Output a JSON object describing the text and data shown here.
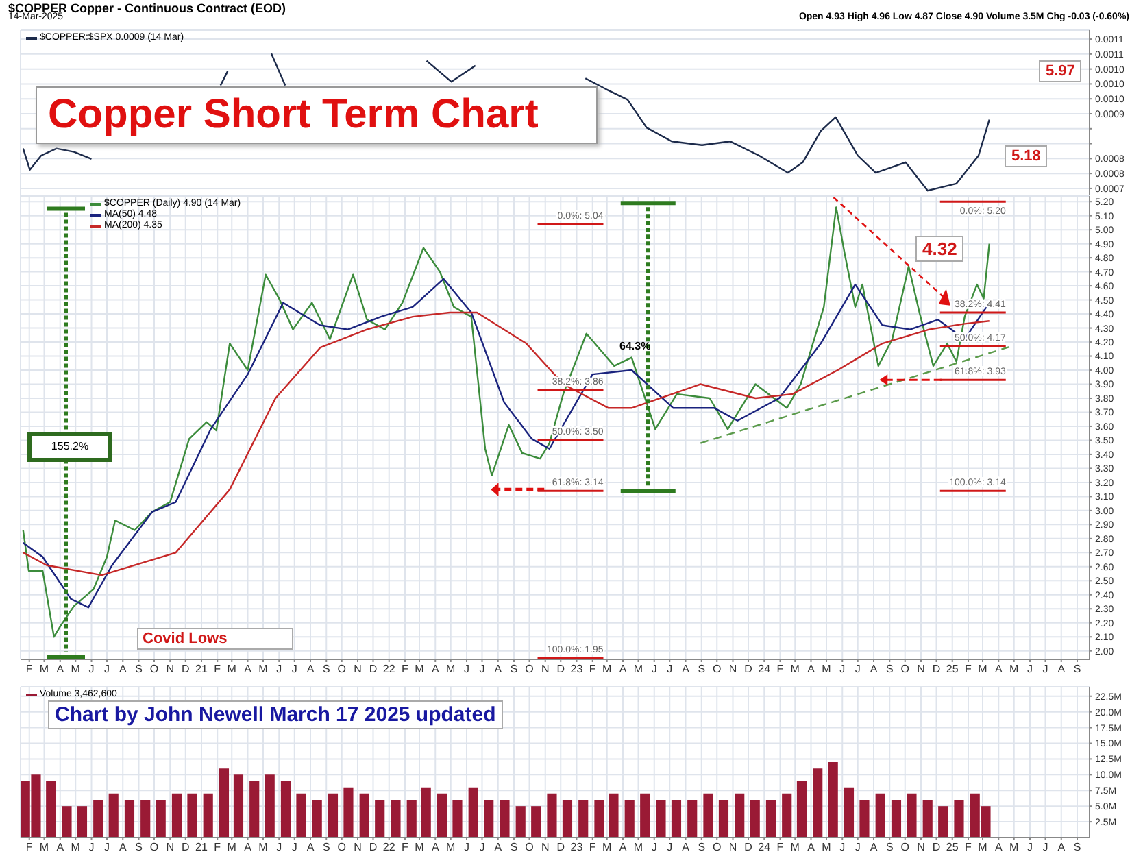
{
  "chart_data": [
    {
      "type": "line",
      "title": "Copper Short Term Chart",
      "annotations": [
        "$COPPER Copper - Continuous Contract (EOD)",
        "14-Mar-2025",
        "Open 4.93 High 4.96 Low 4.87 Close 4.90 Volume 3.5M Chg -0.03 (-0.60%)",
        "5.97",
        "5.18"
      ],
      "xlim": [
        "2020-01-15",
        "2025-09-25"
      ],
      "xticks": [
        {
          "value": "2020-02",
          "label": null
        },
        {
          "value": "2020-03",
          "label": null
        },
        {
          "value": "2020-04",
          "label": null
        },
        {
          "value": "2020-05",
          "label": null
        },
        {
          "value": "2020-06",
          "label": null
        },
        {
          "value": "2020-07",
          "label": null
        },
        {
          "value": "2020-08",
          "label": null
        },
        {
          "value": "2020-09",
          "label": null
        },
        {
          "value": "2020-10",
          "label": null
        },
        {
          "value": "2020-11",
          "label": null
        },
        {
          "value": "2020-12",
          "label": null
        },
        {
          "value": "2021-01",
          "label": null
        },
        {
          "value": "2021-02",
          "label": null
        },
        {
          "value": "2021-03",
          "label": null
        },
        {
          "value": "2021-04",
          "label": null
        },
        {
          "value": "2021-05",
          "label": null
        },
        {
          "value": "2021-06",
          "label": null
        },
        {
          "value": "2021-07",
          "label": null
        },
        {
          "value": "2021-08",
          "label": null
        },
        {
          "value": "2021-09",
          "label": null
        },
        {
          "value": "2021-10",
          "label": null
        },
        {
          "value": "2021-11",
          "label": null
        },
        {
          "value": "2021-12",
          "label": null
        },
        {
          "value": "2022-01",
          "label": null
        },
        {
          "value": "2022-02",
          "label": null
        },
        {
          "value": "2022-03",
          "label": null
        },
        {
          "value": "2022-04",
          "label": null
        },
        {
          "value": "2022-05",
          "label": null
        },
        {
          "value": "2022-06",
          "label": null
        },
        {
          "value": "2022-07",
          "label": null
        },
        {
          "value": "2022-08",
          "label": null
        },
        {
          "value": "2022-09",
          "label": null
        },
        {
          "value": "2022-10",
          "label": null
        },
        {
          "value": "2022-11",
          "label": null
        },
        {
          "value": "2022-12",
          "label": null
        },
        {
          "value": "2023-01",
          "label": null
        },
        {
          "value": "2023-02",
          "label": null
        },
        {
          "value": "2023-03",
          "label": null
        },
        {
          "value": "2023-04",
          "label": null
        },
        {
          "value": "2023-05",
          "label": null
        },
        {
          "value": "2023-06",
          "label": null
        },
        {
          "value": "2023-07",
          "label": null
        },
        {
          "value": "2023-08",
          "label": null
        },
        {
          "value": "2023-09",
          "label": null
        },
        {
          "value": "2023-10",
          "label": null
        },
        {
          "value": "2023-11",
          "label": null
        },
        {
          "value": "2023-12",
          "label": null
        },
        {
          "value": "2024-01",
          "label": null
        },
        {
          "value": "2024-02",
          "label": null
        },
        {
          "value": "2024-03",
          "label": null
        },
        {
          "value": "2024-04",
          "label": null
        },
        {
          "value": "2024-05",
          "label": null
        },
        {
          "value": "2024-06",
          "label": null
        },
        {
          "value": "2024-07",
          "label": null
        },
        {
          "value": "2024-08",
          "label": null
        },
        {
          "value": "2024-09",
          "label": null
        },
        {
          "value": "2024-10",
          "label": null
        },
        {
          "value": "2024-11",
          "label": null
        },
        {
          "value": "2024-12",
          "label": null
        },
        {
          "value": "2025-01",
          "label": null
        },
        {
          "value": "2025-02",
          "label": null
        },
        {
          "value": "2025-03",
          "label": null
        },
        {
          "value": "2025-04",
          "label": null
        },
        {
          "value": "2025-05",
          "label": null
        },
        {
          "value": "2025-06",
          "label": null
        },
        {
          "value": "2025-07",
          "label": null
        },
        {
          "value": "2025-08",
          "label": null
        },
        {
          "value": "2025-09",
          "label": null
        }
      ],
      "ylim": [
        0.000691,
        0.001139
      ],
      "yticks": [
        {
          "value": 0.000715,
          "label": "0.0007"
        },
        {
          "value": 0.000755,
          "label": "0.0008"
        },
        {
          "value": 0.000795,
          "label": "0.0008"
        },
        {
          "value": 0.000835,
          "label": null
        },
        {
          "value": 0.000875,
          "label": null
        },
        {
          "value": 0.000915,
          "label": "0.0009"
        },
        {
          "value": 0.000955,
          "label": "0.0010"
        },
        {
          "value": 0.000995,
          "label": "0.0010"
        },
        {
          "value": 0.001035,
          "label": "0.0010"
        },
        {
          "value": 0.001075,
          "label": "0.0011"
        },
        {
          "value": 0.001115,
          "label": "0.0011"
        }
      ],
      "tick_labels": "y",
      "grid": true,
      "legend": "top left",
      "series": [
        {
          "name": "$COPPER:$SPX 0.0009 (14 Mar)",
          "color": "#1c2a4a",
          "x": [
            "2020-01-20",
            "2020-02-02",
            "2020-02-24",
            "2020-03-25",
            "2020-04-28",
            "2020-06-01",
            "2020-09-15",
            "2021-02-07",
            "2021-02-21",
            "2021-04-18",
            "2021-05-17",
            "2021-06-13",
            "2021-07-26",
            "2021-10-19",
            "2022-01-27",
            "2022-03-15",
            "2022-05-02",
            "2022-06-18",
            "2022-06-23",
            "2022-09-15",
            "2023-01-18",
            "2023-02-27",
            "2023-04-10",
            "2023-05-17",
            "2023-07-05",
            "2023-09-02",
            "2023-10-27",
            "2023-12-22",
            "2024-02-16",
            "2024-03-16",
            "2024-04-20",
            "2024-05-19",
            "2024-07-01",
            "2024-08-05",
            "2024-10-02",
            "2024-11-14",
            "2025-01-09",
            "2025-02-21",
            "2025-03-14"
          ],
          "values": [
            0.000822,
            0.000765,
            0.000803,
            0.000822,
            0.000813,
            0.000794,
            null,
            0.000991,
            0.001029,
            null,
            0.001076,
            0.000991,
            null,
            null,
            null,
            0.001057,
            0.001001,
            0.001044,
            null,
            null,
            0.00101,
            0.000981,
            0.000953,
            0.000878,
            0.000841,
            0.000831,
            0.000841,
            0.000803,
            0.000757,
            0.000785,
            0.000869,
            0.000906,
            0.000803,
            0.000757,
            0.000785,
            0.000709,
            0.000728,
            0.000803,
            0.000899
          ]
        }
      ]
    },
    {
      "type": "line",
      "annotations": [
        "155.2%",
        "64.3%",
        "4.32",
        "Covid Lows"
      ],
      "ref_lines": [
        {
          "axis": "y",
          "value": 5.04,
          "label": "0.0%: 5.04",
          "color": "#d01818"
        },
        {
          "axis": "y",
          "value": 3.86,
          "label": "38.2%: 3.86",
          "color": "#d01818"
        },
        {
          "axis": "y",
          "value": 3.5,
          "label": "50.0%: 3.50",
          "color": "#d01818"
        },
        {
          "axis": "y",
          "value": 3.14,
          "label": "61.8%: 3.14",
          "color": "#d01818"
        },
        {
          "axis": "y",
          "value": 1.95,
          "label": "100.0%: 1.95",
          "color": "#d01818"
        },
        {
          "axis": "y",
          "value": 5.2,
          "label": "0.0%: 5.20",
          "color": "#d01818"
        },
        {
          "axis": "y",
          "value": 4.41,
          "label": "38.2%: 4.41",
          "color": "#d01818"
        },
        {
          "axis": "y",
          "value": 4.17,
          "label": "50.0%: 4.17",
          "color": "#d01818"
        },
        {
          "axis": "y",
          "value": 3.93,
          "label": "61.8%: 3.93",
          "color": "#d01818"
        },
        {
          "axis": "y",
          "value": 3.14,
          "label": "100.0%: 3.14",
          "color": "#d01818"
        }
      ],
      "xlim": [
        "2020-01-15",
        "2025-09-25"
      ],
      "xticks": [
        {
          "value": "2020-02",
          "label": "F"
        },
        {
          "value": "2020-03",
          "label": "M"
        },
        {
          "value": "2020-04",
          "label": "A"
        },
        {
          "value": "2020-05",
          "label": "M"
        },
        {
          "value": "2020-06",
          "label": "J"
        },
        {
          "value": "2020-07",
          "label": "J"
        },
        {
          "value": "2020-08",
          "label": "A"
        },
        {
          "value": "2020-09",
          "label": "S"
        },
        {
          "value": "2020-10",
          "label": "O"
        },
        {
          "value": "2020-11",
          "label": "N"
        },
        {
          "value": "2020-12",
          "label": "D"
        },
        {
          "value": "2021-01",
          "label": "21"
        },
        {
          "value": "2021-02",
          "label": "F"
        },
        {
          "value": "2021-03",
          "label": "M"
        },
        {
          "value": "2021-04",
          "label": "A"
        },
        {
          "value": "2021-05",
          "label": "M"
        },
        {
          "value": "2021-06",
          "label": "J"
        },
        {
          "value": "2021-07",
          "label": "J"
        },
        {
          "value": "2021-08",
          "label": "A"
        },
        {
          "value": "2021-09",
          "label": "S"
        },
        {
          "value": "2021-10",
          "label": "O"
        },
        {
          "value": "2021-11",
          "label": "N"
        },
        {
          "value": "2021-12",
          "label": "D"
        },
        {
          "value": "2022-01",
          "label": "22"
        },
        {
          "value": "2022-02",
          "label": "F"
        },
        {
          "value": "2022-03",
          "label": "M"
        },
        {
          "value": "2022-04",
          "label": "A"
        },
        {
          "value": "2022-05",
          "label": "M"
        },
        {
          "value": "2022-06",
          "label": "J"
        },
        {
          "value": "2022-07",
          "label": "J"
        },
        {
          "value": "2022-08",
          "label": "A"
        },
        {
          "value": "2022-09",
          "label": "S"
        },
        {
          "value": "2022-10",
          "label": "O"
        },
        {
          "value": "2022-11",
          "label": "N"
        },
        {
          "value": "2022-12",
          "label": "D"
        },
        {
          "value": "2023-01",
          "label": "23"
        },
        {
          "value": "2023-02",
          "label": "F"
        },
        {
          "value": "2023-03",
          "label": "M"
        },
        {
          "value": "2023-04",
          "label": "A"
        },
        {
          "value": "2023-05",
          "label": "M"
        },
        {
          "value": "2023-06",
          "label": "J"
        },
        {
          "value": "2023-07",
          "label": "J"
        },
        {
          "value": "2023-08",
          "label": "A"
        },
        {
          "value": "2023-09",
          "label": "S"
        },
        {
          "value": "2023-10",
          "label": "O"
        },
        {
          "value": "2023-11",
          "label": "N"
        },
        {
          "value": "2023-12",
          "label": "D"
        },
        {
          "value": "2024-01",
          "label": "24"
        },
        {
          "value": "2024-02",
          "label": "F"
        },
        {
          "value": "2024-03",
          "label": "M"
        },
        {
          "value": "2024-04",
          "label": "A"
        },
        {
          "value": "2024-05",
          "label": "M"
        },
        {
          "value": "2024-06",
          "label": "J"
        },
        {
          "value": "2024-07",
          "label": "J"
        },
        {
          "value": "2024-08",
          "label": "A"
        },
        {
          "value": "2024-09",
          "label": "S"
        },
        {
          "value": "2024-10",
          "label": "O"
        },
        {
          "value": "2024-11",
          "label": "N"
        },
        {
          "value": "2024-12",
          "label": "D"
        },
        {
          "value": "2025-01",
          "label": "25"
        },
        {
          "value": "2025-02",
          "label": "F"
        },
        {
          "value": "2025-03",
          "label": "M"
        },
        {
          "value": "2025-04",
          "label": "A"
        },
        {
          "value": "2025-05",
          "label": "M"
        },
        {
          "value": "2025-06",
          "label": "J"
        },
        {
          "value": "2025-07",
          "label": "J"
        },
        {
          "value": "2025-08",
          "label": "A"
        },
        {
          "value": "2025-09",
          "label": "S"
        }
      ],
      "ylim": [
        1.94,
        5.24
      ],
      "yticks": [
        {
          "value": 2.0,
          "label": "2.00"
        },
        {
          "value": 2.1,
          "label": "2.10"
        },
        {
          "value": 2.2,
          "label": "2.20"
        },
        {
          "value": 2.3,
          "label": "2.30"
        },
        {
          "value": 2.4,
          "label": "2.40"
        },
        {
          "value": 2.5,
          "label": "2.50"
        },
        {
          "value": 2.6,
          "label": "2.60"
        },
        {
          "value": 2.7,
          "label": "2.70"
        },
        {
          "value": 2.8,
          "label": "2.80"
        },
        {
          "value": 2.9,
          "label": "2.90"
        },
        {
          "value": 3.0,
          "label": "3.00"
        },
        {
          "value": 3.1,
          "label": "3.10"
        },
        {
          "value": 3.2,
          "label": "3.20"
        },
        {
          "value": 3.3,
          "label": "3.30"
        },
        {
          "value": 3.4,
          "label": "3.40"
        },
        {
          "value": 3.5,
          "label": "3.50"
        },
        {
          "value": 3.6,
          "label": "3.60"
        },
        {
          "value": 3.7,
          "label": "3.70"
        },
        {
          "value": 3.8,
          "label": "3.80"
        },
        {
          "value": 3.9,
          "label": "3.90"
        },
        {
          "value": 4.0,
          "label": "4.00"
        },
        {
          "value": 4.1,
          "label": "4.10"
        },
        {
          "value": 4.2,
          "label": "4.20"
        },
        {
          "value": 4.3,
          "label": "4.30"
        },
        {
          "value": 4.4,
          "label": "4.40"
        },
        {
          "value": 4.5,
          "label": "4.50"
        },
        {
          "value": 4.6,
          "label": "4.60"
        },
        {
          "value": 4.7,
          "label": "4.70"
        },
        {
          "value": 4.8,
          "label": "4.80"
        },
        {
          "value": 4.9,
          "label": "4.90"
        },
        {
          "value": 5.0,
          "label": "5.00"
        },
        {
          "value": 5.1,
          "label": "5.10"
        },
        {
          "value": 5.2,
          "label": "5.20"
        }
      ],
      "grid": true,
      "legend": "top left",
      "series": [
        {
          "name": "$COPPER (Daily) 4.90 (14 Mar)",
          "color": "#3c8c3c",
          "x": [
            "2020-01-20",
            "2020-01-31",
            "2020-02-27",
            "2020-03-20",
            "2020-04-02",
            "2020-04-28",
            "2020-06-05",
            "2020-07-01",
            "2020-07-17",
            "2020-08-24",
            "2020-09-27",
            "2020-11-01",
            "2020-12-08",
            "2021-01-11",
            "2021-01-30",
            "2021-02-25",
            "2021-04-01",
            "2021-05-06",
            "2021-06-01",
            "2021-06-28",
            "2021-08-04",
            "2021-09-08",
            "2021-10-23",
            "2021-11-19",
            "2021-12-24",
            "2022-01-27",
            "2022-03-09",
            "2022-04-10",
            "2022-05-07",
            "2022-06-10",
            "2022-07-07",
            "2022-07-20",
            "2022-08-22",
            "2022-09-17",
            "2022-10-22",
            "2022-11-09",
            "2022-12-06",
            "2023-01-20",
            "2023-03-15",
            "2023-04-18",
            "2023-06-03",
            "2023-07-15",
            "2023-09-17",
            "2023-10-22",
            "2023-12-15",
            "2024-02-14",
            "2024-03-12",
            "2024-04-26",
            "2024-05-20",
            "2024-06-05",
            "2024-06-26",
            "2024-07-10",
            "2024-08-10",
            "2024-09-06",
            "2024-10-08",
            "2024-10-29",
            "2024-11-25",
            "2024-12-22",
            "2025-01-09",
            "2025-01-25",
            "2025-02-18",
            "2025-03-03",
            "2025-03-14"
          ],
          "values": [
            2.86,
            2.57,
            2.57,
            2.1,
            2.18,
            2.32,
            2.44,
            2.67,
            2.93,
            2.86,
            2.99,
            3.06,
            3.51,
            3.63,
            3.57,
            4.19,
            4.0,
            4.68,
            4.51,
            4.29,
            4.48,
            4.22,
            4.68,
            4.36,
            4.29,
            4.48,
            4.87,
            4.7,
            4.45,
            4.38,
            3.44,
            3.25,
            3.61,
            3.41,
            3.37,
            3.48,
            3.83,
            4.26,
            4.03,
            4.09,
            3.58,
            3.83,
            3.8,
            3.58,
            3.9,
            3.73,
            3.9,
            4.45,
            5.16,
            4.84,
            4.45,
            4.61,
            4.03,
            4.22,
            4.74,
            4.41,
            4.03,
            4.19,
            4.06,
            4.38,
            4.61,
            4.51,
            4.9
          ]
        },
        {
          "name": "MA(50) 4.48",
          "color": "#1a237e",
          "x": [
            "2020-01-20",
            "2020-02-27",
            "2020-04-22",
            "2020-05-26",
            "2020-07-11",
            "2020-09-27",
            "2020-11-12",
            "2021-01-19",
            "2021-04-01",
            "2021-06-09",
            "2021-08-20",
            "2021-10-13",
            "2021-12-16",
            "2022-02-16",
            "2022-04-17",
            "2022-06-10",
            "2022-08-13",
            "2022-10-06",
            "2022-11-09",
            "2023-02-01",
            "2023-04-18",
            "2023-07-08",
            "2023-09-26",
            "2023-11-10",
            "2024-01-30",
            "2024-04-20",
            "2024-06-26",
            "2024-08-18",
            "2024-10-11",
            "2024-12-04",
            "2025-01-25",
            "2025-03-14"
          ],
          "values": [
            2.77,
            2.67,
            2.37,
            2.31,
            2.61,
            2.99,
            3.06,
            3.58,
            3.97,
            4.48,
            4.32,
            4.29,
            4.38,
            4.45,
            4.65,
            4.41,
            3.77,
            3.51,
            3.44,
            3.97,
            4.0,
            3.73,
            3.73,
            3.64,
            3.8,
            4.19,
            4.61,
            4.32,
            4.29,
            4.36,
            4.22,
            4.48
          ]
        },
        {
          "name": "MA(200) 4.35",
          "color": "#c62828",
          "x": [
            "2020-01-20",
            "2020-03-06",
            "2020-06-21",
            "2020-11-12",
            "2021-02-25",
            "2021-05-25",
            "2021-08-20",
            "2021-11-19",
            "2022-02-16",
            "2022-04-29",
            "2022-06-21",
            "2022-09-25",
            "2022-12-06",
            "2023-03-04",
            "2023-04-18",
            "2023-08-30",
            "2023-12-15",
            "2024-02-25",
            "2024-05-23",
            "2024-08-18",
            "2024-11-17",
            "2025-01-25",
            "2025-03-14"
          ],
          "values": [
            2.7,
            2.61,
            2.54,
            2.7,
            3.15,
            3.8,
            4.16,
            4.29,
            4.38,
            4.41,
            4.41,
            4.19,
            3.9,
            3.73,
            3.73,
            3.9,
            3.8,
            3.83,
            4.0,
            4.19,
            4.29,
            4.33,
            4.35
          ]
        },
        {
          "color": "#5a9a4a",
          "line_style": "dashed",
          "x": [
            "2023-08-30",
            "2025-04-26"
          ],
          "values": [
            3.48,
            4.17
          ]
        }
      ]
    },
    {
      "type": "bar",
      "annotations": [
        "Chart by John Newell March 17 2025 updated"
      ],
      "xlim": [
        "2020-01-15",
        "2025-09-25"
      ],
      "xticks": [
        {
          "value": "2020-02",
          "label": "F"
        },
        {
          "value": "2020-03",
          "label": "M"
        },
        {
          "value": "2020-04",
          "label": "A"
        },
        {
          "value": "2020-05",
          "label": "M"
        },
        {
          "value": "2020-06",
          "label": "J"
        },
        {
          "value": "2020-07",
          "label": "J"
        },
        {
          "value": "2020-08",
          "label": "A"
        },
        {
          "value": "2020-09",
          "label": "S"
        },
        {
          "value": "2020-10",
          "label": "O"
        },
        {
          "value": "2020-11",
          "label": "N"
        },
        {
          "value": "2020-12",
          "label": "D"
        },
        {
          "value": "2021-01",
          "label": "21"
        },
        {
          "value": "2021-02",
          "label": "F"
        },
        {
          "value": "2021-03",
          "label": "M"
        },
        {
          "value": "2021-04",
          "label": "A"
        },
        {
          "value": "2021-05",
          "label": "M"
        },
        {
          "value": "2021-06",
          "label": "J"
        },
        {
          "value": "2021-07",
          "label": "J"
        },
        {
          "value": "2021-08",
          "label": "A"
        },
        {
          "value": "2021-09",
          "label": "S"
        },
        {
          "value": "2021-10",
          "label": "O"
        },
        {
          "value": "2021-11",
          "label": "N"
        },
        {
          "value": "2021-12",
          "label": "D"
        },
        {
          "value": "2022-01",
          "label": "22"
        },
        {
          "value": "2022-02",
          "label": "F"
        },
        {
          "value": "2022-03",
          "label": "M"
        },
        {
          "value": "2022-04",
          "label": "A"
        },
        {
          "value": "2022-05",
          "label": "M"
        },
        {
          "value": "2022-06",
          "label": "J"
        },
        {
          "value": "2022-07",
          "label": "J"
        },
        {
          "value": "2022-08",
          "label": "A"
        },
        {
          "value": "2022-09",
          "label": "S"
        },
        {
          "value": "2022-10",
          "label": "O"
        },
        {
          "value": "2022-11",
          "label": "N"
        },
        {
          "value": "2022-12",
          "label": "D"
        },
        {
          "value": "2023-01",
          "label": "23"
        },
        {
          "value": "2023-02",
          "label": "F"
        },
        {
          "value": "2023-03",
          "label": "M"
        },
        {
          "value": "2023-04",
          "label": "A"
        },
        {
          "value": "2023-05",
          "label": "M"
        },
        {
          "value": "2023-06",
          "label": "J"
        },
        {
          "value": "2023-07",
          "label": "J"
        },
        {
          "value": "2023-08",
          "label": "A"
        },
        {
          "value": "2023-09",
          "label": "S"
        },
        {
          "value": "2023-10",
          "label": "O"
        },
        {
          "value": "2023-11",
          "label": "N"
        },
        {
          "value": "2023-12",
          "label": "D"
        },
        {
          "value": "2024-01",
          "label": "24"
        },
        {
          "value": "2024-02",
          "label": "F"
        },
        {
          "value": "2024-03",
          "label": "M"
        },
        {
          "value": "2024-04",
          "label": "A"
        },
        {
          "value": "2024-05",
          "label": "M"
        },
        {
          "value": "2024-06",
          "label": "J"
        },
        {
          "value": "2024-07",
          "label": "J"
        },
        {
          "value": "2024-08",
          "label": "A"
        },
        {
          "value": "2024-09",
          "label": "S"
        },
        {
          "value": "2024-10",
          "label": "O"
        },
        {
          "value": "2024-11",
          "label": "N"
        },
        {
          "value": "2024-12",
          "label": "D"
        },
        {
          "value": "2025-01",
          "label": "25"
        },
        {
          "value": "2025-02",
          "label": "F"
        },
        {
          "value": "2025-03",
          "label": "M"
        },
        {
          "value": "2025-04",
          "label": "A"
        },
        {
          "value": "2025-05",
          "label": "M"
        },
        {
          "value": "2025-06",
          "label": "J"
        },
        {
          "value": "2025-07",
          "label": "J"
        },
        {
          "value": "2025-08",
          "label": "A"
        },
        {
          "value": "2025-09",
          "label": "S"
        }
      ],
      "ylim": [
        0,
        24
      ],
      "yticks": [
        {
          "value": 2.5,
          "label": "2.5M"
        },
        {
          "value": 5,
          "label": "5.0M"
        },
        {
          "value": 7.5,
          "label": "7.5M"
        },
        {
          "value": 10,
          "label": "10.0M"
        },
        {
          "value": 12.5,
          "label": "12.5M"
        },
        {
          "value": 15,
          "label": "15.0M"
        },
        {
          "value": 17.5,
          "label": "17.5M"
        },
        {
          "value": 20,
          "label": "20.0M"
        },
        {
          "value": 22.5,
          "label": "22.5M"
        }
      ],
      "grid": true,
      "legend": "top left",
      "series": [
        {
          "name": "Volume 3,462,600",
          "color": "#9a1a35",
          "x": [
            "2020-01-25",
            "2020-02-15",
            "2020-03-15",
            "2020-04-15",
            "2020-05-15",
            "2020-06-15",
            "2020-07-15",
            "2020-08-15",
            "2020-09-15",
            "2020-10-15",
            "2020-11-15",
            "2020-12-15",
            "2021-01-15",
            "2021-02-15",
            "2021-03-15",
            "2021-04-15",
            "2021-05-15",
            "2021-06-15",
            "2021-07-15",
            "2021-08-15",
            "2021-09-15",
            "2021-10-15",
            "2021-11-15",
            "2021-12-15",
            "2022-01-15",
            "2022-02-15",
            "2022-03-15",
            "2022-04-15",
            "2022-05-15",
            "2022-06-15",
            "2022-07-15",
            "2022-08-15",
            "2022-09-15",
            "2022-10-15",
            "2022-11-15",
            "2022-12-15",
            "2023-01-15",
            "2023-02-15",
            "2023-03-15",
            "2023-04-15",
            "2023-05-15",
            "2023-06-15",
            "2023-07-15",
            "2023-08-15",
            "2023-09-15",
            "2023-10-15",
            "2023-11-15",
            "2023-12-15",
            "2024-01-15",
            "2024-02-15",
            "2024-03-15",
            "2024-04-15",
            "2024-05-15",
            "2024-06-15",
            "2024-07-15",
            "2024-08-15",
            "2024-09-15",
            "2024-10-15",
            "2024-11-15",
            "2024-12-15",
            "2025-01-15",
            "2025-02-15",
            "2025-03-08"
          ],
          "values": [
            9,
            10,
            9,
            5,
            5,
            6,
            7,
            6,
            6,
            6,
            7,
            7,
            7,
            11,
            10,
            9,
            10,
            9,
            7,
            6,
            7,
            8,
            7,
            6,
            6,
            6,
            8,
            7,
            6,
            8,
            6,
            6,
            5,
            5,
            7,
            6,
            6,
            6,
            7,
            6,
            7,
            6,
            6,
            6,
            7,
            6,
            7,
            6,
            6,
            7,
            9,
            11,
            12,
            8,
            6,
            7,
            6,
            7,
            6,
            5,
            6,
            7,
            5
          ]
        }
      ]
    }
  ]
}
